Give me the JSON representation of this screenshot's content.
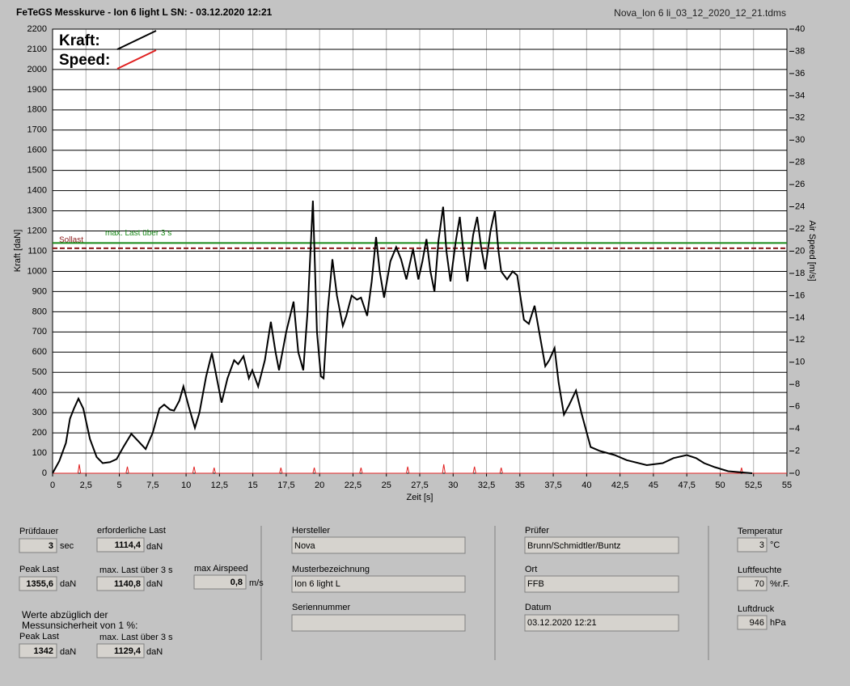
{
  "header": {
    "title": "FeTeGS Messkurve - Ion 6 light L  SN:  - 03.12.2020 12:21",
    "file": "Nova_Ion 6 li_03_12_2020_12_21.tdms"
  },
  "chart_data": {
    "type": "line",
    "y_label": "Kraft [daN]",
    "y2_label": "Air Speed [m/s]",
    "x_label": "Zeit [s]",
    "legend": "upper left",
    "grid": true,
    "xlim": [
      0,
      55
    ],
    "xticks": [
      0,
      {
        "value": 2.5,
        "label": "2,5"
      },
      5,
      {
        "value": 7.5,
        "label": "7,5"
      },
      10,
      {
        "value": 12.5,
        "label": "12,5"
      },
      15,
      {
        "value": 17.5,
        "label": "17,5"
      },
      20,
      {
        "value": 22.5,
        "label": "22,5"
      },
      25,
      {
        "value": 27.5,
        "label": "27,5"
      },
      30,
      {
        "value": 32.5,
        "label": "32,5"
      },
      35,
      {
        "value": 37.5,
        "label": "37,5"
      },
      40,
      {
        "value": 42.5,
        "label": "42,5"
      },
      45,
      {
        "value": 47.5,
        "label": "47,5"
      },
      50,
      {
        "value": 52.5,
        "label": "52,5"
      },
      55
    ],
    "ylim": [
      0,
      2200
    ],
    "yticks": [
      0,
      100,
      200,
      300,
      400,
      500,
      600,
      700,
      800,
      900,
      1000,
      1100,
      1200,
      1300,
      1400,
      1500,
      1600,
      1700,
      1800,
      1900,
      2000,
      2100,
      2200
    ],
    "y2lim": [
      0,
      40
    ],
    "y2ticks": [
      0,
      2,
      4,
      6,
      8,
      10,
      12,
      14,
      16,
      18,
      20,
      22,
      24,
      26,
      28,
      30,
      32,
      34,
      36,
      38,
      40
    ],
    "series": [
      {
        "name": "Kraft:",
        "color": "#000000",
        "x": [
          0,
          0.5,
          1,
          1.3,
          1.6,
          1.94,
          2.3,
          2.8,
          3.3,
          3.75,
          4.3,
          4.8,
          5.3,
          5.9,
          6.4,
          6.97,
          7.5,
          8.0,
          8.36,
          8.8,
          9.1,
          9.5,
          9.8,
          10.2,
          10.66,
          11.0,
          11.5,
          11.93,
          12.3,
          12.66,
          13.1,
          13.6,
          13.9,
          14.3,
          14.7,
          14.96,
          15.4,
          15.9,
          16.35,
          16.7,
          16.96,
          17.5,
          18.05,
          18.4,
          18.78,
          19.1,
          19.5,
          19.8,
          20.1,
          20.3,
          20.6,
          20.96,
          21.3,
          21.74,
          22.0,
          22.4,
          22.8,
          23.1,
          23.56,
          23.9,
          24.23,
          24.5,
          24.83,
          25.3,
          25.74,
          26.1,
          26.5,
          27.0,
          27.4,
          27.7,
          28.0,
          28.3,
          28.6,
          28.9,
          29.25,
          29.5,
          29.8,
          30.2,
          30.5,
          30.8,
          31.07,
          31.5,
          31.8,
          32.1,
          32.4,
          32.8,
          33.13,
          33.4,
          33.6,
          34.04,
          34.46,
          34.8,
          35.3,
          35.67,
          36.1,
          36.5,
          36.9,
          37.2,
          37.6,
          37.9,
          38.3,
          38.7,
          39.2,
          39.6,
          40.3,
          41,
          42.1,
          43,
          44.5,
          45.7,
          46.5,
          47.5,
          48.2,
          48.8,
          49.6,
          50.6,
          52.4
        ],
        "values": [
          0,
          60,
          150,
          270,
          320,
          370,
          320,
          170,
          80,
          50,
          55,
          70,
          130,
          195,
          160,
          120,
          200,
          320,
          340,
          315,
          310,
          360,
          430,
          330,
          225,
          300,
          480,
          595,
          470,
          350,
          470,
          560,
          540,
          580,
          470,
          510,
          430,
          560,
          750,
          600,
          510,
          700,
          850,
          600,
          510,
          800,
          1350,
          700,
          480,
          470,
          800,
          1060,
          880,
          730,
          780,
          880,
          860,
          870,
          780,
          950,
          1170,
          1000,
          870,
          1050,
          1120,
          1060,
          960,
          1110,
          960,
          1050,
          1160,
          1000,
          900,
          1150,
          1320,
          1100,
          950,
          1150,
          1270,
          1080,
          950,
          1180,
          1270,
          1120,
          1010,
          1200,
          1300,
          1100,
          1000,
          960,
          1000,
          980,
          760,
          740,
          830,
          680,
          530,
          560,
          620,
          450,
          290,
          340,
          410,
          300,
          130,
          110,
          90,
          65,
          40,
          50,
          75,
          90,
          75,
          50,
          30,
          10,
          0
        ]
      },
      {
        "name": "Speed:",
        "color": "#e02020",
        "axis": "y2",
        "x": [
          0,
          1.9,
          2,
          2.1,
          5.5,
          5.6,
          5.7,
          10.5,
          10.6,
          10.7,
          12,
          12.1,
          12.2,
          17,
          17.1,
          17.2,
          19.5,
          19.6,
          19.7,
          23,
          23.1,
          23.2,
          26.5,
          26.6,
          26.7,
          29.2,
          29.3,
          29.4,
          31.5,
          31.6,
          31.7,
          33.5,
          33.6,
          33.7,
          51.5,
          51.6,
          51.7,
          55
        ],
        "values": [
          0,
          0,
          0.8,
          0,
          0,
          0.6,
          0,
          0,
          0.6,
          0,
          0,
          0.5,
          0,
          0,
          0.5,
          0,
          0,
          0.5,
          0,
          0,
          0.5,
          0,
          0,
          0.6,
          0,
          0,
          0.8,
          0,
          0,
          0.6,
          0,
          0,
          0.5,
          0,
          0,
          0.5,
          0,
          0
        ]
      }
    ],
    "lines": [
      {
        "value": 1114.4,
        "color": "#8b1a1a",
        "dash": true,
        "label": "Sollast"
      },
      {
        "value": 1140.8,
        "color": "#1a8a1a",
        "dash": false,
        "label": "max. Last über  3 s"
      }
    ]
  },
  "panel": {
    "pruefdauer": {
      "label": "Prüfdauer",
      "value": "3",
      "unit": "sec"
    },
    "erf_last": {
      "label": "erforderliche Last",
      "value": "1114,4",
      "unit": "daN"
    },
    "peak": {
      "label": "Peak Last",
      "value": "1355,6",
      "unit": "daN"
    },
    "max3": {
      "label": "max. Last über  3 s",
      "value": "1140,8",
      "unit": "daN"
    },
    "airspeed": {
      "label": "max Airspeed",
      "value": "0,8",
      "unit": "m/s"
    },
    "note": [
      "Werte abzüglich der",
      "Messunsicherheit von 1  %:"
    ],
    "peak_corr": {
      "label": "Peak Last",
      "value": "1342",
      "unit": "daN"
    },
    "max3_corr": {
      "label": "max. Last über  3 s",
      "value": "1129,4",
      "unit": "daN"
    },
    "hersteller": {
      "label": "Hersteller",
      "value": "Nova"
    },
    "muster": {
      "label": "Musterbezeichnung",
      "value": "Ion 6 light L"
    },
    "serie": {
      "label": "Seriennummer"
    },
    "pruefer": {
      "label": "Prüfer",
      "value": "Brunn/Schmidtler/Buntz"
    },
    "ort": {
      "label": "Ort",
      "value": "FFB"
    },
    "datum": {
      "label": "Datum",
      "value": "03.12.2020 12:21"
    },
    "temp": {
      "label": "Temperatur",
      "value": "3",
      "unit": "°C"
    },
    "feuchte": {
      "label": "Luftfeuchte",
      "value": "70",
      "unit": "%r.F."
    },
    "druck": {
      "label": "Luftdruck",
      "value": "946",
      "unit": "hPa"
    }
  }
}
